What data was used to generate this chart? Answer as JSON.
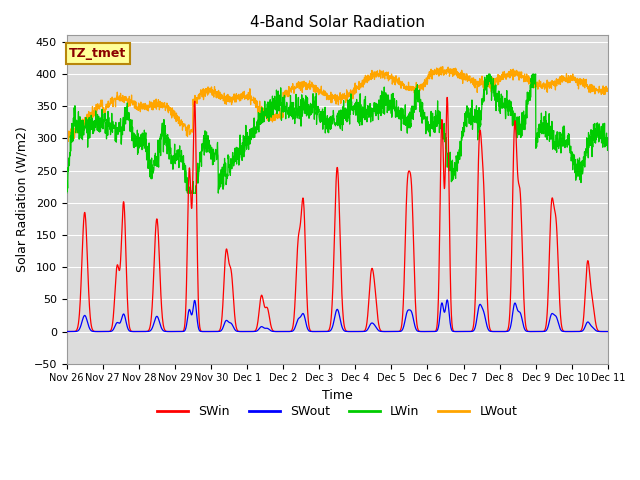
{
  "title": "4-Band Solar Radiation",
  "xlabel": "Time",
  "ylabel": "Solar Radiation (W/m2)",
  "ylim": [
    -50,
    460
  ],
  "yticks": [
    -50,
    0,
    50,
    100,
    150,
    200,
    250,
    300,
    350,
    400,
    450
  ],
  "xtick_labels": [
    "Nov 26",
    "Nov 27",
    "Nov 28",
    "Nov 29",
    "Nov 30",
    "Dec 1",
    "Dec 2",
    "Dec 3",
    "Dec 4",
    "Dec 5",
    "Dec 6",
    "Dec 7",
    "Dec 8",
    "Dec 9",
    "Dec 10",
    "Dec 11"
  ],
  "legend_labels": [
    "SWin",
    "SWout",
    "LWin",
    "LWout"
  ],
  "legend_colors": [
    "#ff0000",
    "#0000ff",
    "#00cc00",
    "#ffa500"
  ],
  "annotation_text": "TZ_tmet",
  "annotation_box_color": "#ffff99",
  "annotation_border_color": "#b8860b",
  "bg_color": "#dcdcdc",
  "line_colors": {
    "SWin": "#ff0000",
    "SWout": "#0000ff",
    "LWin": "#00cc00",
    "LWout": "#ffa500"
  },
  "n_days": 15,
  "pts_per_day": 144
}
